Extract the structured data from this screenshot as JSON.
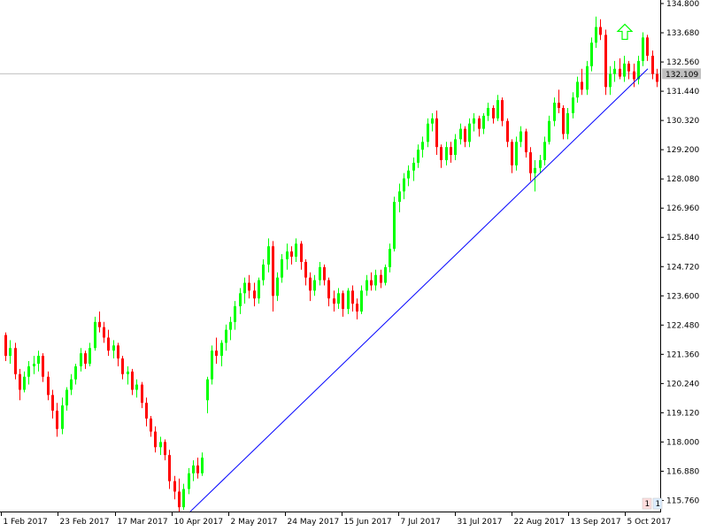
{
  "chart_data": {
    "type": "candlestick",
    "instrument_timeframe": "daily",
    "title": "",
    "ylim": [
      115.2,
      134.8
    ],
    "y_ticks": [
      "134.800",
      "133.680",
      "132.560",
      "131.440",
      "130.320",
      "129.200",
      "128.080",
      "126.960",
      "125.840",
      "124.720",
      "123.600",
      "122.480",
      "121.360",
      "120.240",
      "119.120",
      "118.000",
      "116.880",
      "115.760"
    ],
    "x_ticks": [
      "1 Feb 2017",
      "23 Feb 2017",
      "17 Mar 2017",
      "10 Apr 2017",
      "2 May 2017",
      "24 May 2017",
      "15 Jun 2017",
      "7 Jul 2017",
      "31 Jul 2017",
      "22 Aug 2017",
      "13 Sep 2017",
      "5 Oct 2017"
    ],
    "current_price": "132.109",
    "grid": false,
    "colors": {
      "bull": "#00ff00",
      "bear": "#ff0000",
      "line": "#0000ff",
      "price_line": "#c0c0c0",
      "axis": "#000000",
      "arrow": "#00ff00"
    },
    "trendline": {
      "from": {
        "date": "10 Apr 2017",
        "price": 115.3
      },
      "to": {
        "date": "12 Oct 2017",
        "price": 132.3
      }
    },
    "up_arrow_marker": {
      "date": "29 Sep 2017",
      "price": 133.7
    },
    "pane_badges": [
      "1",
      "1"
    ],
    "candles_ohlc": [
      [
        122.1,
        122.2,
        121.1,
        121.3
      ],
      [
        121.3,
        121.9,
        121.0,
        121.6
      ],
      [
        121.6,
        121.8,
        120.4,
        120.6
      ],
      [
        120.6,
        120.8,
        119.6,
        120.0
      ],
      [
        120.0,
        120.7,
        119.9,
        120.5
      ],
      [
        120.5,
        121.1,
        120.2,
        120.9
      ],
      [
        120.9,
        121.3,
        120.6,
        121.0
      ],
      [
        121.0,
        121.5,
        120.7,
        121.3
      ],
      [
        121.3,
        121.4,
        120.3,
        120.5
      ],
      [
        120.5,
        120.7,
        119.6,
        119.8
      ],
      [
        119.8,
        120.0,
        118.9,
        119.2
      ],
      [
        119.2,
        119.5,
        118.2,
        118.5
      ],
      [
        118.5,
        119.7,
        118.3,
        119.4
      ],
      [
        119.4,
        120.1,
        119.2,
        120.0
      ],
      [
        120.0,
        120.6,
        119.8,
        120.4
      ],
      [
        120.4,
        121.0,
        120.2,
        120.9
      ],
      [
        120.9,
        121.6,
        120.7,
        121.4
      ],
      [
        121.4,
        121.5,
        120.8,
        121.0
      ],
      [
        121.0,
        121.8,
        120.9,
        121.6
      ],
      [
        121.6,
        122.8,
        121.5,
        122.6
      ],
      [
        122.6,
        123.0,
        122.2,
        122.4
      ],
      [
        122.4,
        122.6,
        121.8,
        122.0
      ],
      [
        122.0,
        122.3,
        121.3,
        121.5
      ],
      [
        121.5,
        121.9,
        121.2,
        121.7
      ],
      [
        121.7,
        121.8,
        120.9,
        121.2
      ],
      [
        121.2,
        121.3,
        120.4,
        120.6
      ],
      [
        120.6,
        120.9,
        120.2,
        120.7
      ],
      [
        120.7,
        120.8,
        119.8,
        120.0
      ],
      [
        120.0,
        120.4,
        119.7,
        120.2
      ],
      [
        120.2,
        120.3,
        119.3,
        119.5
      ],
      [
        119.5,
        119.7,
        118.6,
        118.9
      ],
      [
        118.9,
        119.0,
        118.2,
        118.4
      ],
      [
        118.4,
        118.6,
        117.6,
        117.8
      ],
      [
        117.8,
        118.2,
        117.5,
        118.0
      ],
      [
        118.0,
        118.1,
        117.3,
        117.5
      ],
      [
        117.5,
        117.7,
        116.2,
        116.5
      ],
      [
        116.5,
        116.7,
        115.8,
        116.1
      ],
      [
        116.1,
        116.6,
        115.3,
        115.5
      ],
      [
        115.5,
        116.4,
        115.4,
        116.2
      ],
      [
        116.2,
        117.0,
        116.0,
        116.8
      ],
      [
        116.8,
        117.3,
        116.5,
        117.1
      ],
      [
        117.1,
        117.4,
        116.6,
        116.8
      ],
      [
        116.8,
        117.6,
        116.7,
        117.4
      ],
      [
        119.6,
        120.5,
        119.1,
        120.4
      ],
      [
        120.4,
        121.7,
        120.2,
        121.5
      ],
      [
        121.5,
        122.0,
        121.0,
        121.3
      ],
      [
        121.3,
        121.9,
        120.9,
        121.8
      ],
      [
        121.8,
        122.5,
        121.5,
        122.3
      ],
      [
        122.3,
        122.8,
        121.9,
        122.6
      ],
      [
        122.6,
        123.4,
        122.3,
        123.2
      ],
      [
        123.2,
        123.9,
        122.9,
        123.7
      ],
      [
        123.7,
        124.3,
        123.3,
        124.1
      ],
      [
        124.1,
        124.4,
        123.5,
        123.8
      ],
      [
        123.8,
        124.1,
        123.2,
        123.5
      ],
      [
        123.5,
        124.3,
        123.3,
        124.2
      ],
      [
        124.2,
        125.0,
        124.0,
        124.8
      ],
      [
        124.8,
        125.8,
        124.5,
        125.5
      ],
      [
        125.5,
        125.7,
        123.0,
        123.6
      ],
      [
        123.6,
        124.5,
        123.4,
        124.3
      ],
      [
        124.3,
        125.2,
        124.1,
        125.0
      ],
      [
        125.0,
        125.6,
        124.6,
        125.3
      ],
      [
        125.3,
        125.5,
        124.8,
        125.1
      ],
      [
        125.1,
        125.8,
        124.9,
        125.6
      ],
      [
        125.6,
        125.7,
        124.6,
        124.9
      ],
      [
        124.9,
        125.0,
        124.0,
        124.3
      ],
      [
        124.3,
        124.5,
        123.4,
        123.8
      ],
      [
        123.8,
        124.4,
        123.6,
        124.2
      ],
      [
        124.2,
        124.9,
        124.0,
        124.7
      ],
      [
        124.7,
        124.8,
        124.0,
        124.2
      ],
      [
        124.2,
        124.3,
        123.2,
        123.5
      ],
      [
        123.5,
        123.8,
        123.0,
        123.3
      ],
      [
        123.3,
        123.9,
        123.1,
        123.7
      ],
      [
        123.7,
        123.8,
        122.8,
        123.1
      ],
      [
        123.1,
        123.9,
        122.9,
        123.8
      ],
      [
        123.8,
        124.0,
        123.0,
        123.3
      ],
      [
        123.3,
        123.5,
        122.7,
        123.0
      ],
      [
        123.0,
        124.0,
        122.9,
        123.8
      ],
      [
        123.8,
        124.4,
        123.6,
        124.2
      ],
      [
        124.2,
        124.5,
        123.8,
        124.0
      ],
      [
        124.0,
        124.6,
        123.8,
        124.4
      ],
      [
        124.4,
        124.6,
        123.9,
        124.1
      ],
      [
        124.1,
        124.8,
        124.0,
        124.7
      ],
      [
        124.7,
        125.6,
        124.5,
        125.4
      ],
      [
        125.4,
        127.4,
        125.3,
        127.2
      ],
      [
        127.2,
        127.9,
        126.8,
        127.6
      ],
      [
        127.6,
        128.3,
        127.3,
        128.1
      ],
      [
        128.1,
        128.6,
        127.8,
        128.4
      ],
      [
        128.4,
        128.9,
        128.0,
        128.7
      ],
      [
        128.7,
        129.4,
        128.5,
        129.2
      ],
      [
        129.2,
        129.7,
        128.9,
        129.5
      ],
      [
        129.5,
        130.4,
        129.3,
        130.2
      ],
      [
        130.2,
        130.6,
        129.9,
        130.4
      ],
      [
        130.4,
        130.7,
        129.0,
        129.3
      ],
      [
        129.3,
        129.4,
        128.5,
        128.8
      ],
      [
        128.8,
        129.5,
        128.6,
        129.3
      ],
      [
        129.3,
        129.5,
        128.7,
        129.0
      ],
      [
        129.0,
        129.8,
        128.8,
        129.6
      ],
      [
        129.6,
        130.2,
        129.4,
        130.0
      ],
      [
        130.0,
        130.1,
        129.3,
        129.5
      ],
      [
        129.5,
        130.4,
        129.3,
        130.2
      ],
      [
        130.2,
        130.6,
        129.9,
        130.4
      ],
      [
        130.4,
        130.5,
        129.7,
        130.0
      ],
      [
        130.0,
        130.6,
        129.8,
        130.5
      ],
      [
        130.5,
        131.0,
        130.3,
        130.8
      ],
      [
        130.8,
        130.9,
        130.2,
        130.4
      ],
      [
        130.4,
        131.3,
        130.3,
        131.1
      ],
      [
        131.1,
        131.2,
        130.1,
        130.3
      ],
      [
        130.3,
        130.4,
        129.3,
        129.5
      ],
      [
        129.5,
        129.6,
        128.3,
        128.6
      ],
      [
        128.6,
        129.7,
        128.4,
        129.5
      ],
      [
        129.5,
        130.1,
        129.3,
        129.9
      ],
      [
        129.9,
        130.0,
        128.9,
        129.1
      ],
      [
        129.1,
        129.3,
        128.0,
        128.3
      ],
      [
        128.3,
        128.8,
        127.6,
        128.5
      ],
      [
        128.5,
        129.0,
        128.3,
        128.8
      ],
      [
        128.8,
        129.7,
        128.6,
        129.5
      ],
      [
        129.5,
        130.5,
        129.4,
        130.3
      ],
      [
        130.3,
        131.2,
        130.1,
        131.0
      ],
      [
        131.0,
        131.5,
        130.6,
        130.8
      ],
      [
        130.8,
        130.9,
        129.6,
        129.8
      ],
      [
        129.8,
        130.8,
        129.6,
        130.6
      ],
      [
        130.6,
        131.4,
        130.4,
        131.2
      ],
      [
        131.2,
        132.0,
        131.0,
        131.8
      ],
      [
        131.8,
        132.3,
        131.3,
        131.5
      ],
      [
        131.5,
        132.6,
        131.3,
        132.4
      ],
      [
        132.4,
        133.5,
        132.2,
        133.3
      ],
      [
        133.3,
        134.3,
        133.1,
        133.9
      ],
      [
        133.9,
        134.2,
        133.4,
        133.6
      ],
      [
        133.6,
        133.8,
        131.3,
        131.6
      ],
      [
        131.6,
        132.4,
        131.3,
        132.1
      ],
      [
        132.1,
        132.6,
        131.8,
        132.3
      ],
      [
        132.3,
        132.7,
        131.9,
        132.0
      ],
      [
        132.0,
        132.8,
        131.8,
        132.5
      ],
      [
        132.5,
        132.6,
        131.9,
        132.2
      ],
      [
        132.2,
        132.5,
        131.6,
        131.9
      ],
      [
        131.9,
        132.8,
        131.7,
        132.6
      ],
      [
        132.6,
        133.7,
        132.4,
        133.5
      ],
      [
        133.5,
        133.6,
        132.6,
        132.8
      ],
      [
        132.8,
        133.0,
        131.9,
        132.1
      ],
      [
        132.1,
        132.3,
        131.6,
        131.8
      ]
    ]
  }
}
